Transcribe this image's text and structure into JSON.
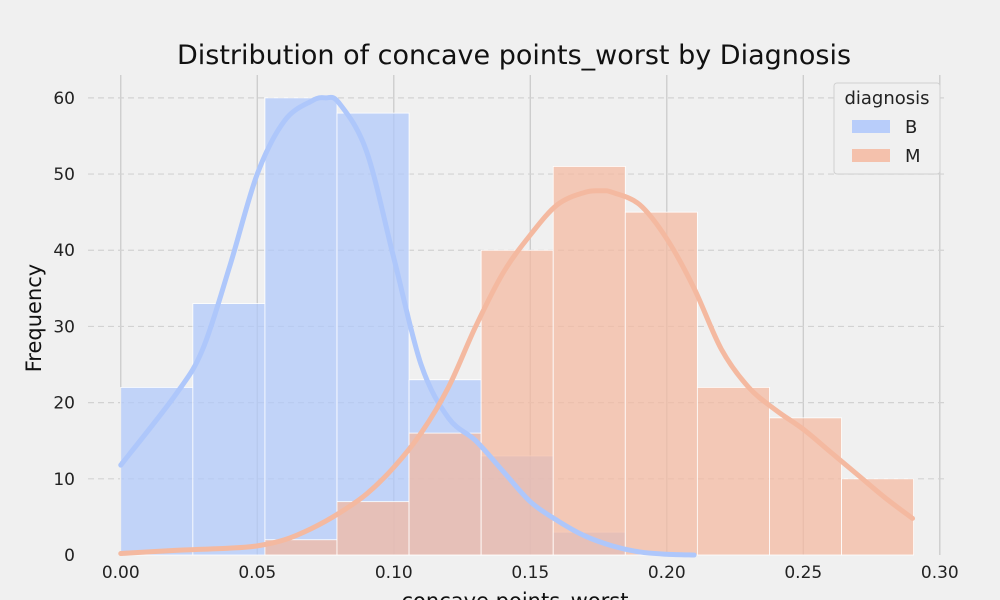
{
  "chart_data": {
    "type": "bar",
    "subtype": "histogram-with-kde",
    "title": "Distribution of concave points_worst by Diagnosis",
    "xlabel": "concave points_worst",
    "ylabel": "Frequency",
    "xlim": [
      -0.012,
      0.303
    ],
    "ylim": [
      0,
      63
    ],
    "x_ticks": [
      "0.00",
      "0.05",
      "0.10",
      "0.15",
      "0.20",
      "0.25",
      "0.30"
    ],
    "x_tick_values": [
      0.0,
      0.05,
      0.1,
      0.15,
      0.2,
      0.25,
      0.3
    ],
    "y_ticks": [
      "0",
      "10",
      "20",
      "30",
      "40",
      "50",
      "60"
    ],
    "y_tick_values": [
      0,
      10,
      20,
      30,
      40,
      50,
      60
    ],
    "bin_edges": [
      0.0,
      0.0264,
      0.0528,
      0.0792,
      0.1056,
      0.132,
      0.1584,
      0.1848,
      0.2112,
      0.2376,
      0.264,
      0.2904
    ],
    "grid": true,
    "legend": {
      "title": "diagnosis",
      "position": "top-right"
    },
    "series": [
      {
        "name": "B",
        "color": "#aec7fb",
        "counts": [
          22,
          33,
          60,
          58,
          23,
          13,
          3,
          0,
          0,
          0,
          0
        ],
        "kde": [
          [
            0.0,
            11.8
          ],
          [
            0.02,
            21
          ],
          [
            0.03,
            27
          ],
          [
            0.04,
            38
          ],
          [
            0.05,
            50
          ],
          [
            0.06,
            57
          ],
          [
            0.07,
            59.6
          ],
          [
            0.075,
            60
          ],
          [
            0.08,
            59.3
          ],
          [
            0.09,
            53
          ],
          [
            0.1,
            39
          ],
          [
            0.11,
            25
          ],
          [
            0.12,
            18
          ],
          [
            0.13,
            15
          ],
          [
            0.14,
            11
          ],
          [
            0.15,
            7
          ],
          [
            0.16,
            4.5
          ],
          [
            0.17,
            2.5
          ],
          [
            0.18,
            1.2
          ],
          [
            0.19,
            0.4
          ],
          [
            0.2,
            0.1
          ],
          [
            0.21,
            0
          ]
        ]
      },
      {
        "name": "M",
        "color": "#f4b9a0",
        "counts": [
          0,
          0,
          2,
          7,
          16,
          40,
          51,
          45,
          22,
          18,
          10
        ],
        "kde": [
          [
            0.0,
            0.2
          ],
          [
            0.02,
            0.6
          ],
          [
            0.04,
            0.9
          ],
          [
            0.05,
            1.2
          ],
          [
            0.06,
            2
          ],
          [
            0.07,
            3.5
          ],
          [
            0.08,
            5.5
          ],
          [
            0.09,
            8
          ],
          [
            0.1,
            11.5
          ],
          [
            0.11,
            16
          ],
          [
            0.12,
            22
          ],
          [
            0.13,
            30
          ],
          [
            0.14,
            37
          ],
          [
            0.15,
            42
          ],
          [
            0.16,
            46
          ],
          [
            0.17,
            47.6
          ],
          [
            0.176,
            47.8
          ],
          [
            0.18,
            47.6
          ],
          [
            0.19,
            46
          ],
          [
            0.2,
            41.5
          ],
          [
            0.21,
            35
          ],
          [
            0.22,
            27
          ],
          [
            0.23,
            22
          ],
          [
            0.24,
            19
          ],
          [
            0.25,
            16.5
          ],
          [
            0.26,
            13.5
          ],
          [
            0.27,
            10.5
          ],
          [
            0.28,
            7.5
          ],
          [
            0.29,
            4.8
          ]
        ]
      }
    ]
  }
}
